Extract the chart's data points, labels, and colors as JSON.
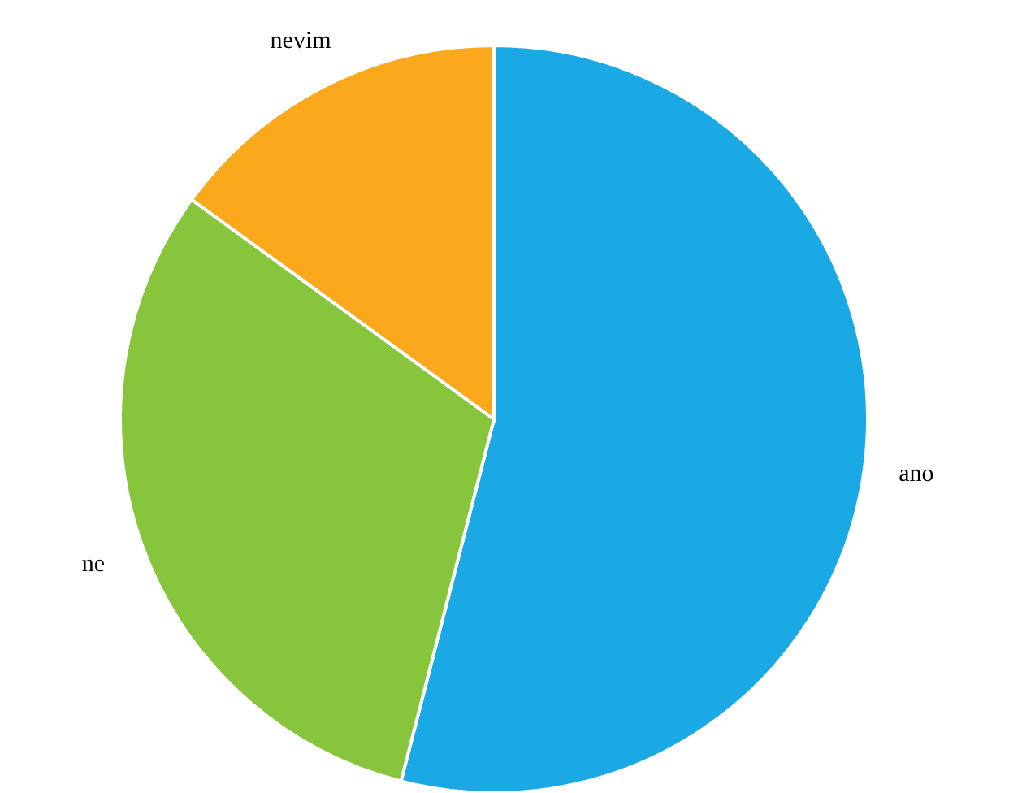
{
  "chart_data": {
    "type": "pie",
    "categories": [
      "ano",
      "ne",
      "nevim"
    ],
    "values": [
      54,
      31,
      15
    ],
    "colors": [
      "#1aa9e5",
      "#86c53c",
      "#fba81c"
    ]
  }
}
